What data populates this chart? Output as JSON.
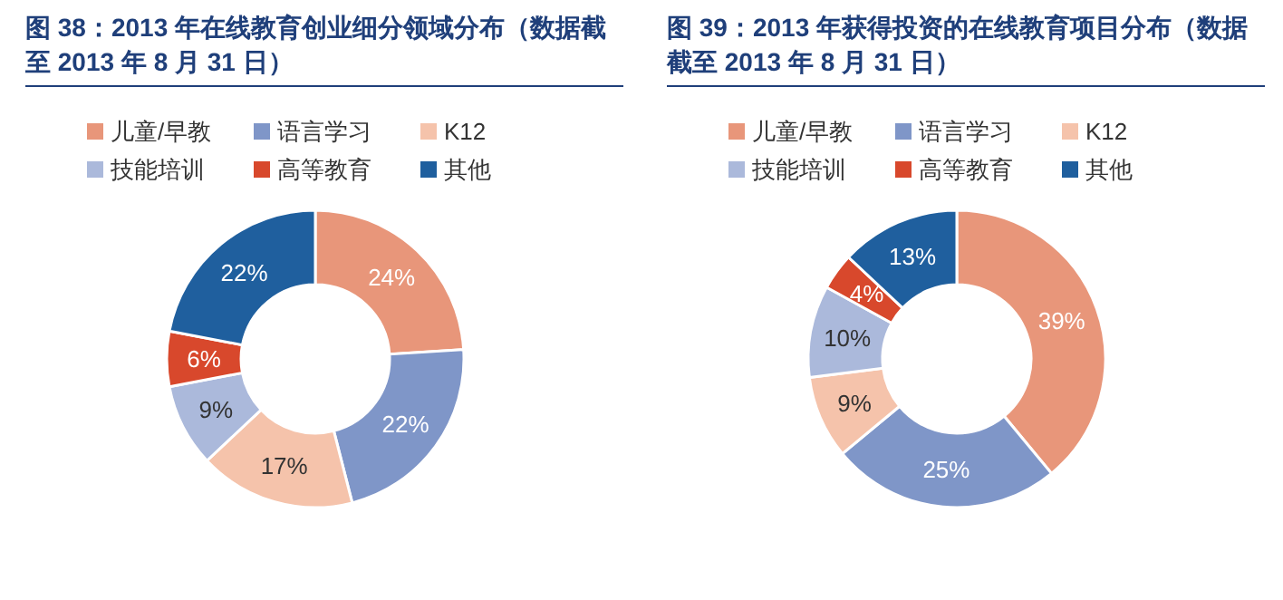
{
  "chart_data": [
    {
      "type": "donut",
      "title": "图 38：2013 年在线教育创业细分领域分布（数据截至 2013 年 8 月 31 日）",
      "categories": [
        "儿童/早教",
        "语言学习",
        "K12",
        "技能培训",
        "高等教育",
        "其他"
      ],
      "values": [
        24,
        22,
        17,
        9,
        6,
        22
      ],
      "value_labels": [
        "24%",
        "22%",
        "17%",
        "9%",
        "6%",
        "22%"
      ],
      "colors": [
        "#e8967a",
        "#7f96c8",
        "#f5c3ab",
        "#abb9db",
        "#d8482c",
        "#1f5f9e"
      ],
      "legend": "top"
    },
    {
      "type": "donut",
      "title": "图 39：2013 年获得投资的在线教育项目分布（数据截至 2013 年 8 月 31 日）",
      "categories": [
        "儿童/早教",
        "语言学习",
        "K12",
        "技能培训",
        "高等教育",
        "其他"
      ],
      "values": [
        39,
        25,
        9,
        10,
        4,
        13
      ],
      "value_labels": [
        "39%",
        "25%",
        "9%",
        "10%",
        "4%",
        "13%"
      ],
      "colors": [
        "#e8967a",
        "#7f96c8",
        "#f5c3ab",
        "#abb9db",
        "#d8482c",
        "#1f5f9e"
      ],
      "legend": "top"
    }
  ]
}
